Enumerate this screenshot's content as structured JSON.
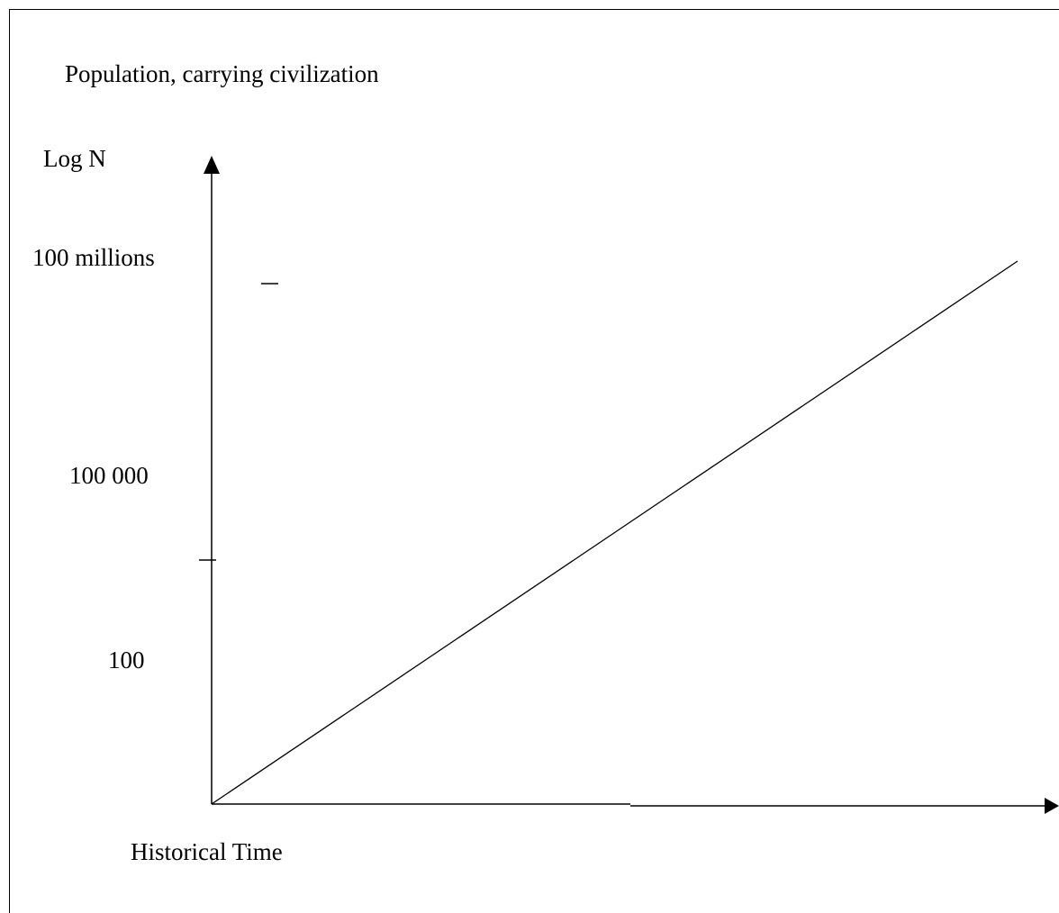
{
  "chart_data": {
    "type": "line",
    "title": "Population, carrying civilization",
    "xlabel": "Historical Time",
    "ylabel": "Log N",
    "yscale": "log",
    "y_tick_labels": [
      "100 millions",
      "100 000",
      "100"
    ],
    "y_tick_values": [
      100000000,
      100000,
      100
    ],
    "grid": false,
    "legend": "none",
    "series": [
      {
        "x": [
          0,
          1
        ],
        "y": [
          1,
          300000000
        ]
      }
    ],
    "colors": {
      "line": "#000000",
      "axes": "#000000",
      "background": "#ffffff"
    }
  }
}
